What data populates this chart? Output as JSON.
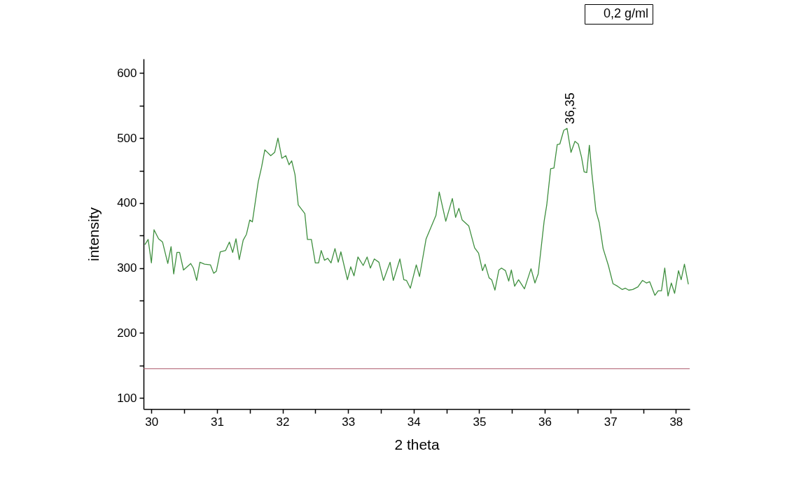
{
  "chart_data": {
    "type": "line",
    "xlabel": "2 theta",
    "ylabel": "intensity",
    "xlim": [
      29.88,
      38.21
    ],
    "xticks": [
      30,
      {
        "value": 30.5,
        "label": null
      },
      31,
      {
        "value": 31.5,
        "label": null
      },
      32,
      {
        "value": 32.5,
        "label": null
      },
      33,
      {
        "value": 33.5,
        "label": null
      },
      34,
      {
        "value": 34.5,
        "label": null
      },
      35,
      {
        "value": 35.5,
        "label": null
      },
      36,
      {
        "value": 36.5,
        "label": null
      },
      37,
      {
        "value": 37.5,
        "label": null
      },
      38
    ],
    "ylim": [
      83,
      622
    ],
    "yticks": [
      100,
      {
        "value": 150,
        "label": null
      },
      200,
      {
        "value": 250,
        "label": null
      },
      300,
      {
        "value": 350,
        "label": null
      },
      400,
      {
        "value": 450,
        "label": null
      },
      500,
      {
        "value": 550,
        "label": null
      },
      600
    ],
    "grid": false,
    "legend": "top right",
    "marker": "none",
    "line_style": "solid",
    "series": [
      {
        "name": "0,2 g/ml",
        "color": "#3f8f3f",
        "x": [
          29.9,
          29.95,
          30.0,
          30.04,
          30.11,
          30.17,
          30.25,
          30.3,
          30.34,
          30.39,
          30.43,
          30.49,
          30.6,
          30.64,
          30.69,
          30.74,
          30.81,
          30.9,
          30.95,
          30.99,
          31.05,
          31.13,
          31.19,
          31.24,
          31.29,
          31.34,
          31.4,
          31.45,
          31.5,
          31.54,
          31.63,
          31.68,
          31.73,
          31.82,
          31.88,
          31.93,
          31.99,
          32.05,
          32.1,
          32.14,
          32.19,
          32.24,
          32.34,
          32.38,
          32.44,
          32.5,
          32.55,
          32.59,
          32.64,
          32.69,
          32.74,
          32.8,
          32.85,
          32.89,
          32.99,
          33.04,
          33.09,
          33.15,
          33.23,
          33.29,
          33.34,
          33.4,
          33.47,
          33.54,
          33.64,
          33.69,
          33.79,
          33.85,
          33.89,
          33.95,
          34.04,
          34.09,
          34.19,
          34.34,
          34.39,
          34.49,
          34.59,
          34.64,
          34.69,
          34.74,
          34.84,
          34.93,
          34.99,
          35.05,
          35.09,
          35.15,
          35.19,
          35.24,
          35.3,
          35.34,
          35.4,
          35.45,
          35.49,
          35.54,
          35.6,
          35.69,
          35.79,
          35.85,
          35.9,
          35.99,
          36.03,
          36.09,
          36.14,
          36.19,
          36.23,
          36.29,
          36.34,
          36.4,
          36.46,
          36.51,
          36.56,
          36.6,
          36.64,
          36.68,
          36.72,
          36.78,
          36.83,
          36.89,
          36.97,
          37.04,
          37.11,
          37.18,
          37.23,
          37.28,
          37.34,
          37.42,
          37.49,
          37.55,
          37.6,
          37.68,
          37.73,
          37.78,
          37.83,
          37.88,
          37.93,
          37.98,
          38.04,
          38.08,
          38.13,
          38.19
        ],
        "values": [
          336,
          344,
          308,
          359,
          345,
          340,
          307,
          333,
          291,
          324,
          324,
          297,
          307,
          300,
          281,
          309,
          306,
          305,
          292,
          295,
          325,
          327,
          340,
          324,
          345,
          313,
          343,
          352,
          374,
          371,
          433,
          455,
          482,
          473,
          478,
          500,
          469,
          473,
          459,
          465,
          444,
          397,
          384,
          344,
          344,
          308,
          308,
          327,
          312,
          315,
          308,
          330,
          309,
          325,
          282,
          302,
          288,
          317,
          304,
          317,
          300,
          314,
          309,
          281,
          309,
          281,
          314,
          282,
          281,
          269,
          305,
          287,
          345,
          381,
          417,
          372,
          407,
          378,
          392,
          374,
          365,
          331,
          323,
          296,
          306,
          285,
          282,
          266,
          297,
          300,
          296,
          280,
          297,
          272,
          282,
          268,
          299,
          277,
          291,
          372,
          397,
          453,
          454,
          490,
          491,
          512,
          515,
          478,
          495,
          491,
          471,
          448,
          447,
          489,
          444,
          388,
          370,
          330,
          304,
          276,
          272,
          267,
          269,
          266,
          267,
          271,
          281,
          277,
          279,
          258,
          265,
          265,
          300,
          257,
          277,
          261,
          296,
          282,
          306,
          275
        ]
      }
    ],
    "ref_lines": [
      {
        "axis": "y",
        "value": 145,
        "color": "#b06070"
      }
    ],
    "annotations": [
      {
        "text": "36,35",
        "x": 36.35,
        "y": 515
      }
    ]
  }
}
